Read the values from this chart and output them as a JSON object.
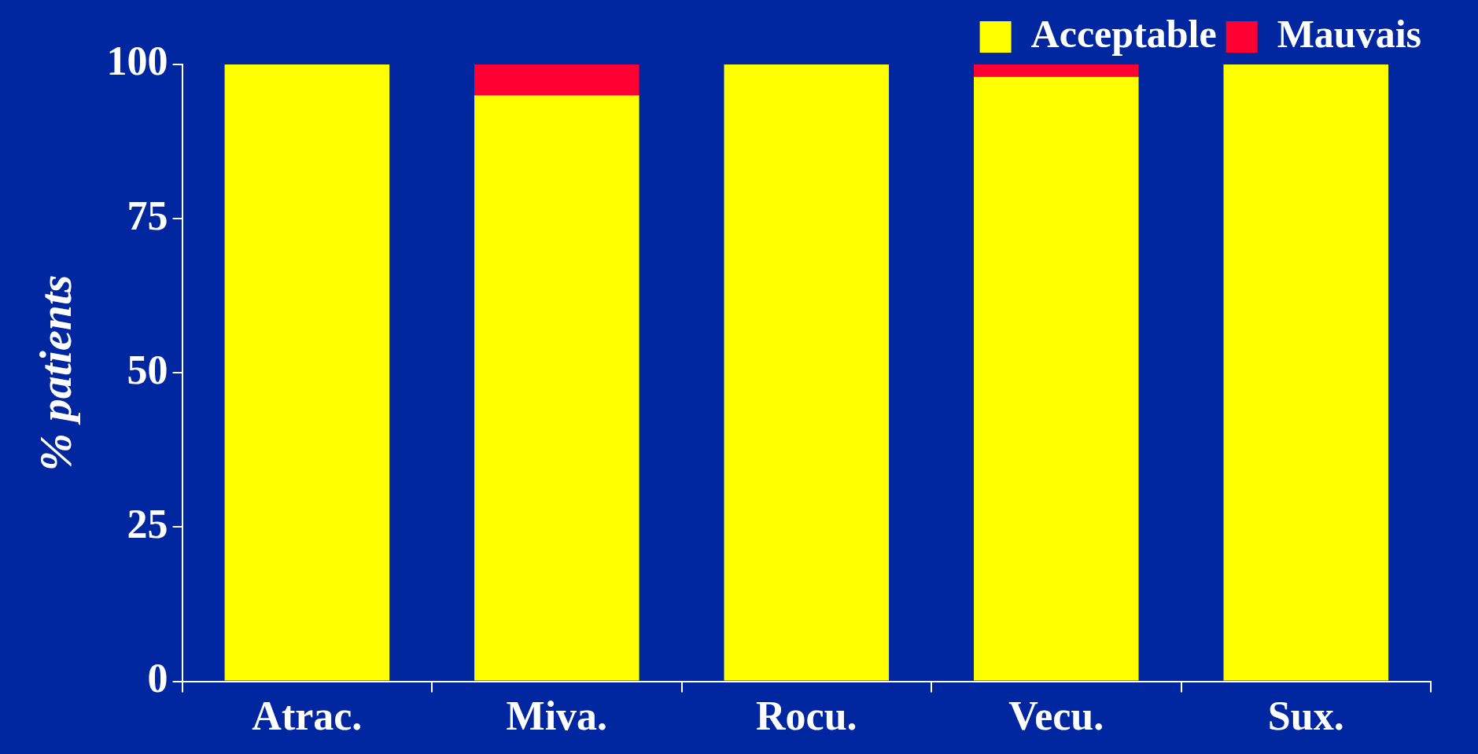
{
  "chart_data": {
    "type": "bar",
    "stacked": true,
    "ylabel": "% patients",
    "categories": [
      "Atrac.",
      "Miva.",
      "Rocu.",
      "Vecu.",
      "Sux."
    ],
    "series": [
      {
        "name": "Acceptable",
        "color": "#ffff00",
        "values": [
          100,
          95,
          100,
          98,
          100
        ]
      },
      {
        "name": "Mauvais",
        "color": "#ff0033",
        "values": [
          0,
          5,
          0,
          2,
          0
        ]
      }
    ],
    "ylim": [
      0,
      100
    ],
    "yticks": [
      0,
      25,
      50,
      75,
      100
    ],
    "grid": false,
    "legend": "top right"
  }
}
